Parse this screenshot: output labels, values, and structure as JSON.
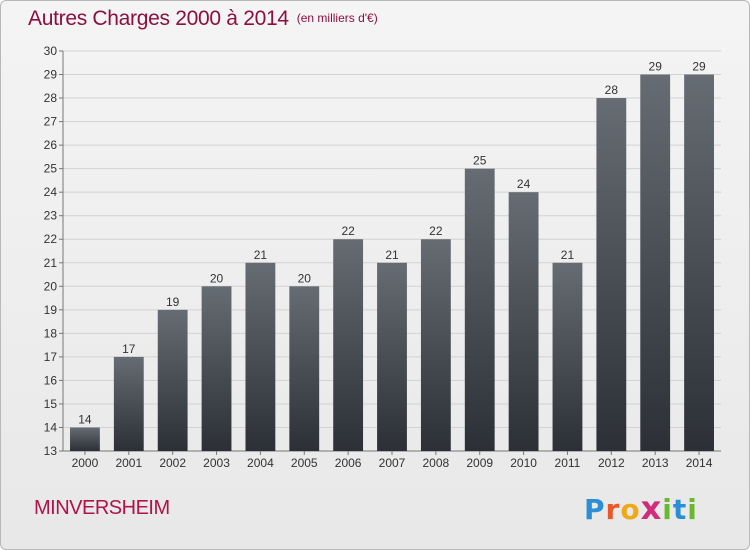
{
  "header": {
    "title": "Autres Charges 2000 à 2014",
    "unit": "(en milliers d'€)"
  },
  "footer": {
    "city": "MINVERSHEIM",
    "logo": "Proxiti"
  },
  "colors": {
    "title": "#8a1040",
    "city": "#b0124a",
    "bar_top": "#666c73",
    "bar_bottom": "#2c3036"
  },
  "chart_data": {
    "type": "bar",
    "categories": [
      "2000",
      "2001",
      "2002",
      "2003",
      "2004",
      "2005",
      "2006",
      "2007",
      "2008",
      "2009",
      "2010",
      "2011",
      "2012",
      "2013",
      "2014"
    ],
    "values": [
      14,
      17,
      19,
      20,
      21,
      20,
      22,
      21,
      22,
      25,
      24,
      21,
      28,
      29,
      29
    ],
    "title": "Autres Charges 2000 à 2014",
    "xlabel": "",
    "ylabel": "",
    "ylim": [
      13,
      30
    ],
    "yticks": [
      13,
      14,
      15,
      16,
      17,
      18,
      19,
      20,
      21,
      22,
      23,
      24,
      25,
      26,
      27,
      28,
      29,
      30
    ],
    "grid": true,
    "data_labels": true
  }
}
